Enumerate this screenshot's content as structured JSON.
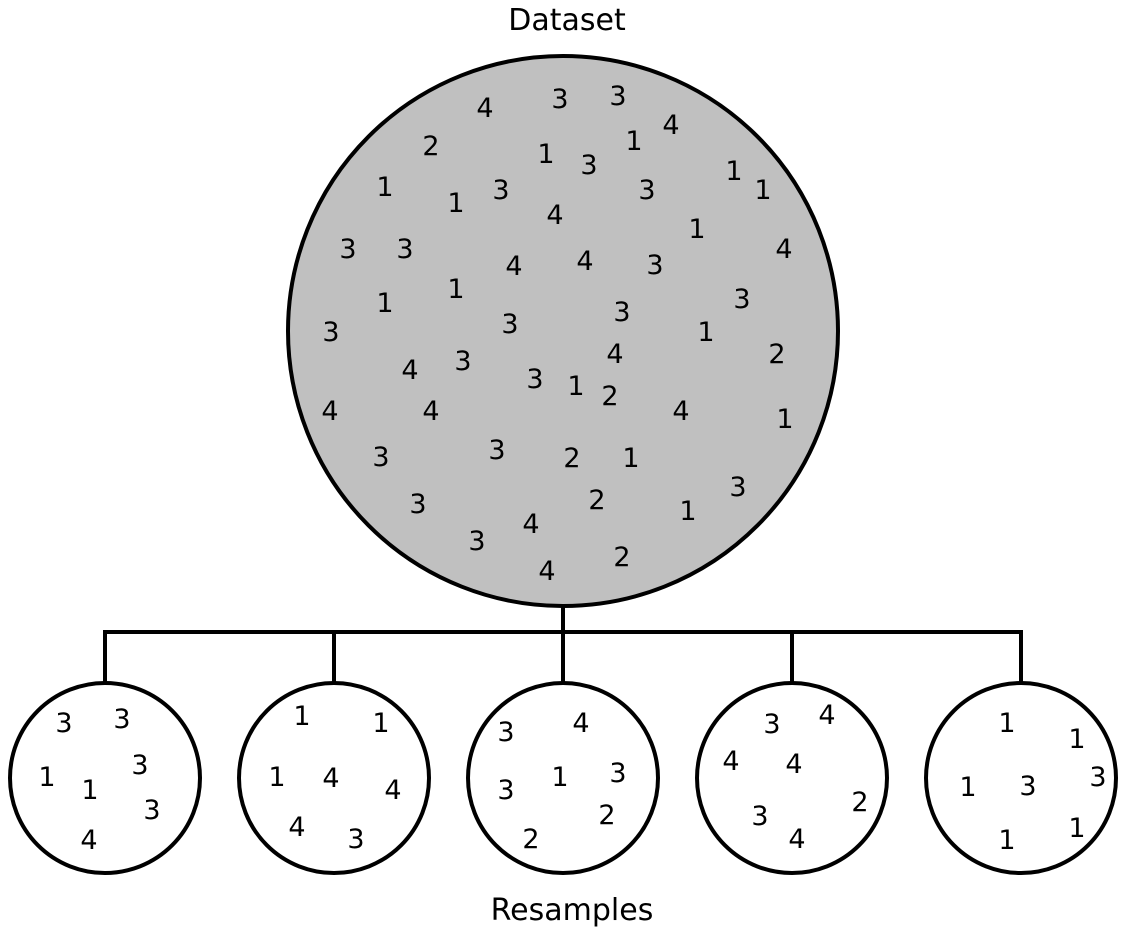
{
  "dataset": {
    "label": "Dataset",
    "fill_color": "#c0c0c0",
    "values": [
      "4",
      "3",
      "3",
      "2",
      "1",
      "3",
      "1",
      "4",
      "1",
      "1",
      "3",
      "3",
      "1",
      "1",
      "4",
      "1",
      "3",
      "3",
      "4",
      "4",
      "3",
      "4",
      "1",
      "1",
      "3",
      "3",
      "3",
      "1",
      "3",
      "4",
      "3",
      "4",
      "2",
      "3",
      "1",
      "2",
      "4",
      "4",
      "4",
      "1",
      "3",
      "3",
      "2",
      "1",
      "3",
      "4",
      "2",
      "1",
      "3",
      "3",
      "4",
      "2",
      "1"
    ]
  },
  "resamples": {
    "label": "Resamples",
    "fill_color": "#ffffff",
    "items": [
      {
        "values": [
          "3",
          "3",
          "1",
          "1",
          "3",
          "3",
          "4"
        ]
      },
      {
        "values": [
          "1",
          "1",
          "1",
          "4",
          "4",
          "4",
          "3"
        ]
      },
      {
        "values": [
          "3",
          "4",
          "3",
          "1",
          "3",
          "2",
          "2"
        ]
      },
      {
        "values": [
          "3",
          "4",
          "4",
          "4",
          "2",
          "3",
          "4"
        ]
      },
      {
        "values": [
          "1",
          "1",
          "1",
          "3",
          "3",
          "1",
          "1"
        ]
      }
    ]
  }
}
